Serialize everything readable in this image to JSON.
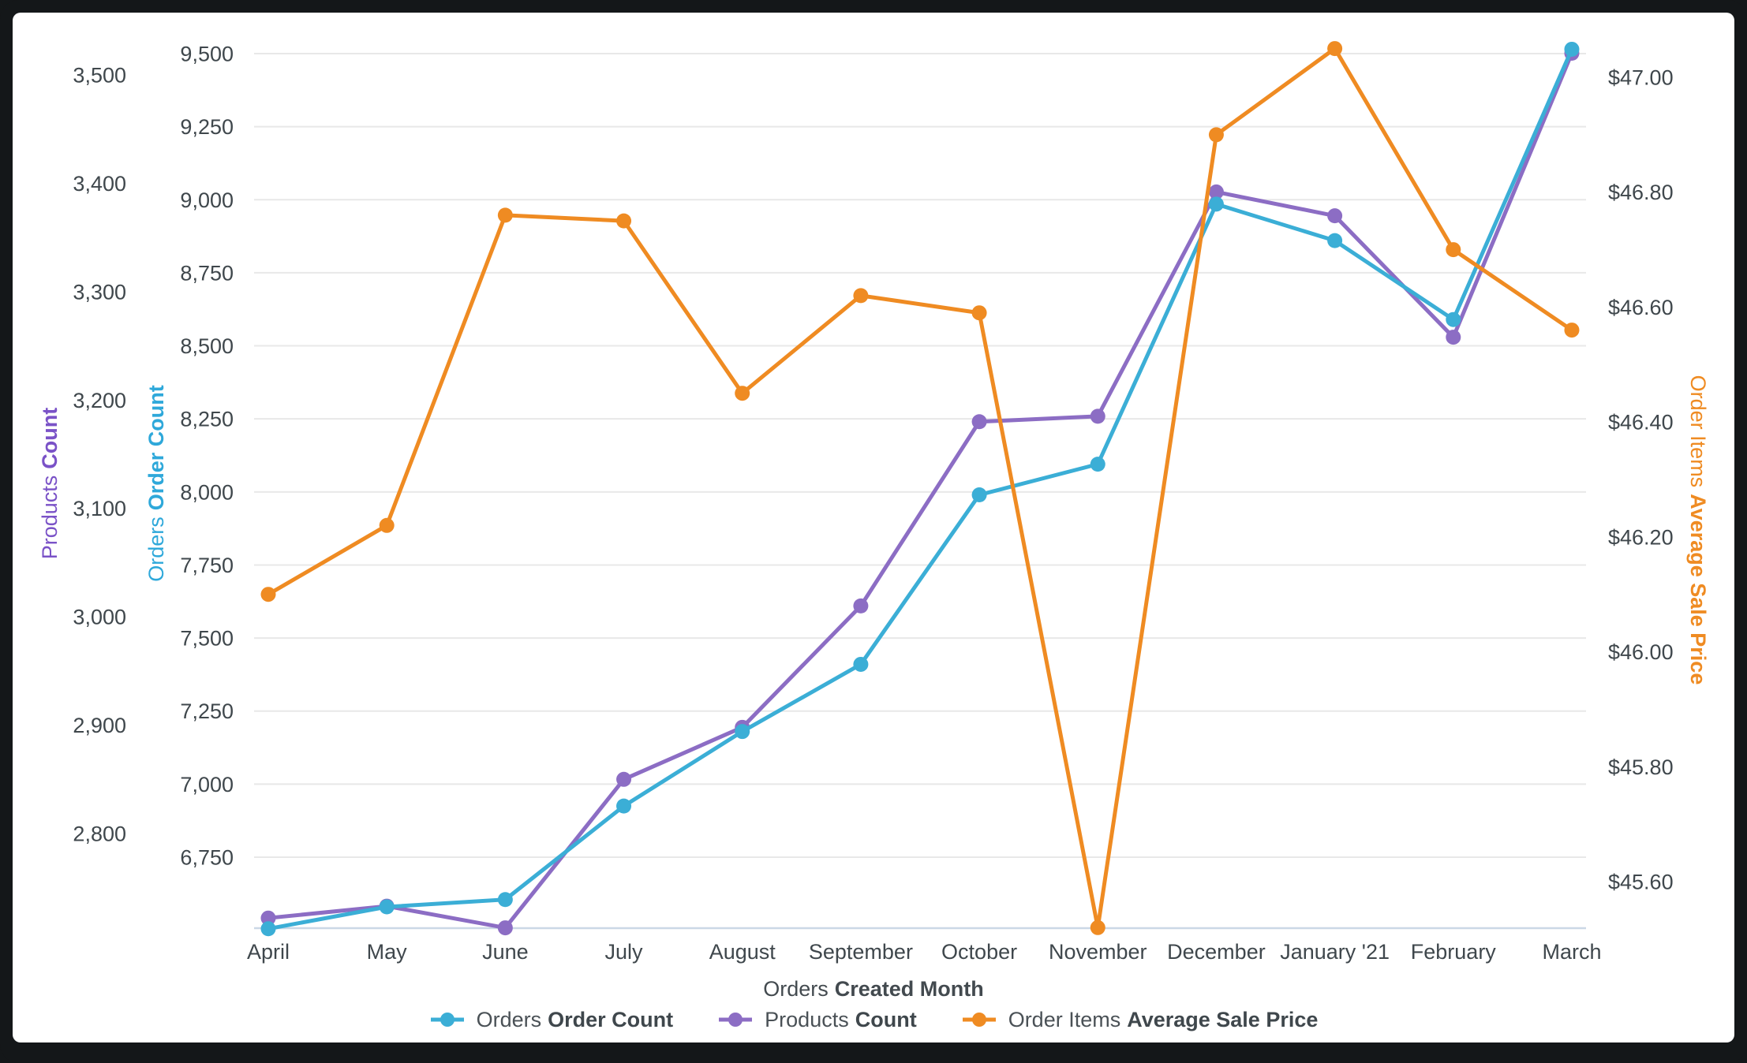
{
  "colors": {
    "grid": "#E8E8E8",
    "axis_line": "#CBD8E6",
    "tick_text": "#3F474C",
    "label_text": "#434A4F"
  },
  "chart_data": {
    "type": "line",
    "categories": [
      "April",
      "May",
      "June",
      "July",
      "August",
      "September",
      "October",
      "November",
      "December",
      "January '21",
      "February",
      "March"
    ],
    "x_axis": {
      "title_regular": "Orders",
      "title_bold": "Created Month"
    },
    "legend_position": "bottom",
    "grid": true,
    "series": [
      {
        "id": "orders_order_count",
        "label_regular": "Orders",
        "label_bold": "Order Count",
        "color": "#3BAED6",
        "axis": "orders",
        "values": [
          6505,
          6580,
          6605,
          6925,
          7180,
          7410,
          7990,
          8095,
          8985,
          8860,
          8590,
          9515
        ]
      },
      {
        "id": "products_count",
        "label_regular": "Products",
        "label_bold": "Count",
        "color": "#8C6DC4",
        "axis": "products",
        "values": [
          2722,
          2733,
          2713,
          2850,
          2898,
          3010,
          3180,
          3185,
          3392,
          3370,
          3258,
          3520
        ]
      },
      {
        "id": "order_items_average_sale_price",
        "label_regular": "Order Items",
        "label_bold": "Average Sale Price",
        "color": "#EF8B22",
        "axis": "price",
        "values": [
          46.1,
          46.22,
          46.76,
          46.75,
          46.45,
          46.62,
          46.59,
          45.52,
          46.9,
          47.05,
          46.7,
          46.56
        ]
      }
    ],
    "axes": {
      "products": {
        "side": "left-outer",
        "title_regular": "Products",
        "title_bold": "Count",
        "title_color": "#7A52C7",
        "ticks": [
          {
            "label": "3,500",
            "value": 3500
          },
          {
            "label": "3,400",
            "value": 3400
          },
          {
            "label": "3,300",
            "value": 3300
          },
          {
            "label": "3,200",
            "value": 3200
          },
          {
            "label": "3,100",
            "value": 3100
          },
          {
            "label": "3,000",
            "value": 3000
          },
          {
            "label": "2,900",
            "value": 2900
          },
          {
            "label": "2,800",
            "value": 2800
          }
        ]
      },
      "orders": {
        "side": "left-inner",
        "title_regular": "Orders",
        "title_bold": "Order Count",
        "title_color": "#2EA8DA",
        "ticks": [
          {
            "label": "9,500",
            "value": 9500
          },
          {
            "label": "9,250",
            "value": 9250
          },
          {
            "label": "9,000",
            "value": 9000
          },
          {
            "label": "8,750",
            "value": 8750
          },
          {
            "label": "8,500",
            "value": 8500
          },
          {
            "label": "8,250",
            "value": 8250
          },
          {
            "label": "8,000",
            "value": 8000
          },
          {
            "label": "7,750",
            "value": 7750
          },
          {
            "label": "7,500",
            "value": 7500
          },
          {
            "label": "7,250",
            "value": 7250
          },
          {
            "label": "7,000",
            "value": 7000
          },
          {
            "label": "6,750",
            "value": 6750
          }
        ]
      },
      "price": {
        "side": "right",
        "title_regular": "Order Items",
        "title_bold": "Average Sale Price",
        "title_color": "#EF8B22",
        "ticks": [
          {
            "label": "$47.00",
            "value": 47.0
          },
          {
            "label": "$46.80",
            "value": 46.8
          },
          {
            "label": "$46.60",
            "value": 46.6
          },
          {
            "label": "$46.40",
            "value": 46.4
          },
          {
            "label": "$46.20",
            "value": 46.2
          },
          {
            "label": "$46.00",
            "value": 46.0
          },
          {
            "label": "$45.80",
            "value": 45.8
          },
          {
            "label": "$45.60",
            "value": 45.6
          }
        ]
      }
    }
  }
}
